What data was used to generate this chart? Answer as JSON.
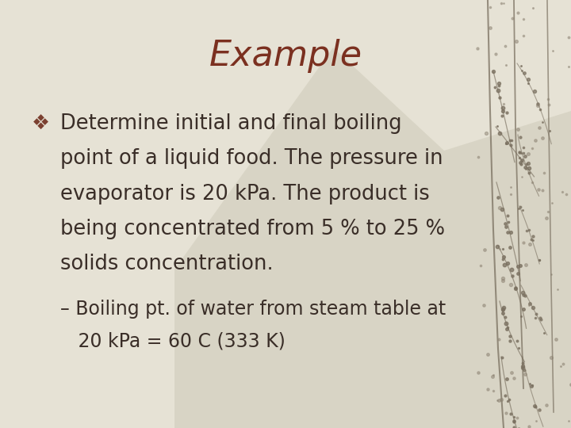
{
  "title": "Example",
  "title_color": "#7B3020",
  "title_fontsize": 32,
  "title_fontstyle": "italic",
  "title_font": "Georgia",
  "bullet_color": "#3A2E28",
  "bullet_fontsize": 18.5,
  "bullet_font": "Georgia",
  "bullet_marker": "❖",
  "bullet_marker_color": "#7B4030",
  "background_color": "#E6E2D5",
  "bullet_text_lines": [
    "Determine initial and final boiling",
    "point of a liquid food. The pressure in",
    "evaporator is 20 kPa. The product is",
    "being concentrated from 5 % to 25 %",
    "solids concentration."
  ],
  "sub_bullet_lines": [
    "– Boiling pt. of water from steam table at",
    "   20 kPa = 60 C (333 K)"
  ],
  "sub_bullet_fontsize": 17,
  "mountain_color": "#C0BCA8",
  "mountain_alpha": 0.35,
  "branch_color": "#7A7060",
  "branch_alpha": 0.75,
  "berry_color": "#8A8070",
  "berry_alpha": 0.65
}
